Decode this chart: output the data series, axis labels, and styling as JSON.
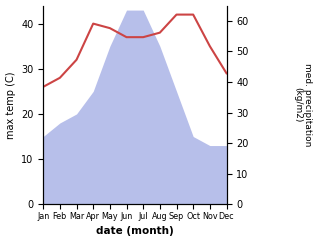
{
  "months": [
    "Jan",
    "Feb",
    "Mar",
    "Apr",
    "May",
    "Jun",
    "Jul",
    "Aug",
    "Sep",
    "Oct",
    "Nov",
    "Dec"
  ],
  "precipitation_left": [
    15,
    18,
    20,
    25,
    35,
    43,
    43,
    35,
    25,
    15,
    13,
    13
  ],
  "temperature": [
    26,
    28,
    32,
    40,
    39,
    37,
    37,
    38,
    42,
    42,
    35,
    29
  ],
  "precip_color": "#b0b8e8",
  "temp_color": "#cc4444",
  "ylabel_left": "max temp (C)",
  "ylabel_right": "med. precipitation\n(kg/m2)",
  "xlabel": "date (month)",
  "ylim_left": [
    0,
    44
  ],
  "ylim_right": [
    0,
    65
  ],
  "yticks_left": [
    0,
    10,
    20,
    30,
    40
  ],
  "yticks_right": [
    0,
    10,
    20,
    30,
    40,
    50,
    60
  ],
  "bg_color": "#ffffff"
}
